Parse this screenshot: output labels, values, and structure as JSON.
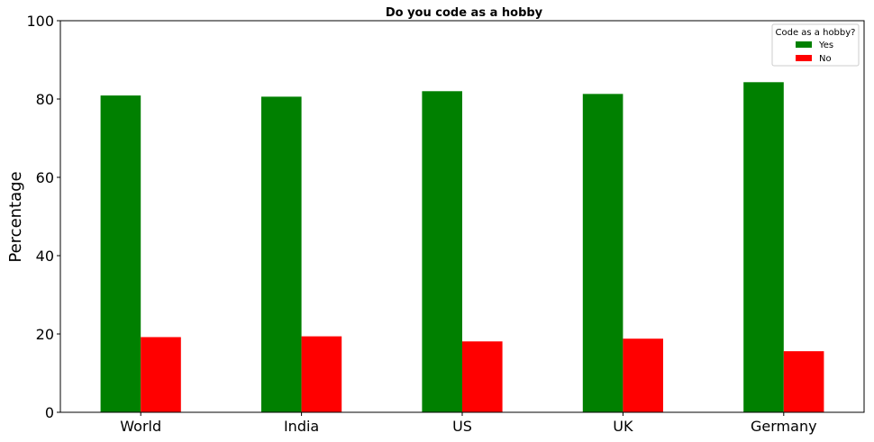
{
  "chart_data": {
    "type": "bar",
    "title": "Do you code as a hobby",
    "xlabel": "",
    "ylabel": "Percentage",
    "categories": [
      "World",
      "India",
      "US",
      "UK",
      "Germany"
    ],
    "series": [
      {
        "name": "Yes",
        "color": "#008000",
        "values": [
          80.9,
          80.6,
          82.0,
          81.3,
          84.3
        ]
      },
      {
        "name": "No",
        "color": "#ff0000",
        "values": [
          19.2,
          19.4,
          18.1,
          18.8,
          15.6
        ]
      }
    ],
    "ylim": [
      0,
      100
    ],
    "yticks": [
      "0",
      "20",
      "40",
      "60",
      "80",
      "100"
    ],
    "grid": false,
    "legend": {
      "title": "Code as a hobby?",
      "placement": "top-right"
    }
  }
}
